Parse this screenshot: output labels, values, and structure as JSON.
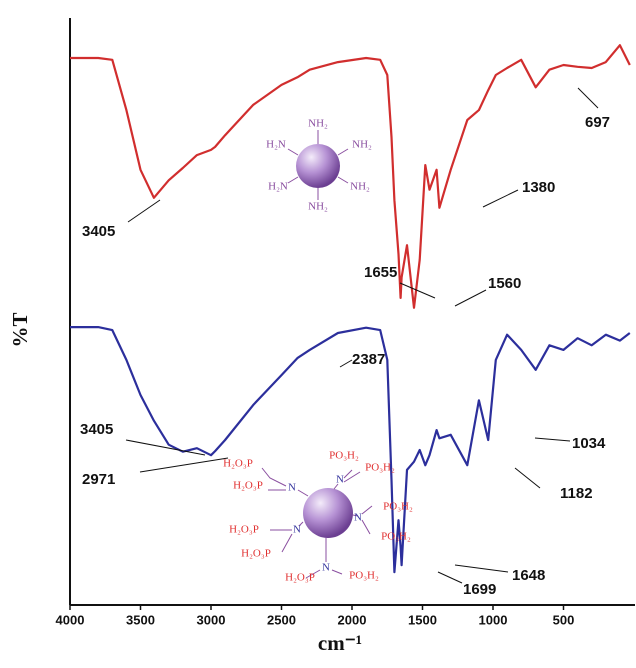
{
  "chart_data": {
    "type": "line",
    "xlabel": "cm⁻¹",
    "ylabel": "%T",
    "x": [
      4000,
      3800,
      3700,
      3600,
      3500,
      3405,
      3300,
      3200,
      3100,
      3000,
      2971,
      2900,
      2700,
      2500,
      2387,
      2300,
      2100,
      1900,
      1800,
      1750,
      1720,
      1699,
      1670,
      1655,
      1648,
      1610,
      1560,
      1520,
      1480,
      1450,
      1400,
      1380,
      1300,
      1182,
      1100,
      1034,
      980,
      900,
      800,
      697,
      600,
      500,
      400,
      300,
      200,
      100,
      30
    ],
    "series": [
      {
        "color": "#d12e2e",
        "values": [
          93.5,
          93.5,
          93.2,
          84.6,
          74.4,
          69.6,
          72.6,
          74.7,
          76.9,
          77.8,
          78.3,
          80.3,
          85.5,
          88.9,
          90.2,
          91.5,
          92.8,
          93.5,
          93.2,
          90.6,
          80.0,
          69.2,
          60.0,
          52.5,
          56.0,
          61.5,
          50.8,
          59.0,
          75.2,
          71.0,
          74.4,
          67.9,
          74.4,
          82.9,
          84.6,
          88.0,
          90.6,
          91.8,
          93.2,
          88.5,
          91.5,
          92.3,
          92.0,
          91.8,
          92.8,
          95.7,
          92.3
        ]
      },
      {
        "color": "#2c2f9c",
        "values": [
          47.5,
          47.5,
          47.0,
          41.9,
          35.9,
          31.5,
          27.4,
          26.2,
          26.8,
          25.6,
          26.3,
          28.2,
          34.2,
          39.3,
          42.2,
          43.6,
          46.5,
          47.4,
          47.0,
          41.9,
          21.4,
          5.6,
          14.5,
          10.0,
          6.8,
          23.1,
          24.5,
          26.5,
          23.9,
          25.6,
          29.9,
          28.5,
          29.1,
          23.9,
          35.0,
          28.2,
          41.9,
          46.2,
          43.6,
          40.2,
          44.4,
          43.6,
          45.6,
          44.4,
          46.2,
          45.2,
          46.5
        ]
      }
    ],
    "xlim": [
      4000,
      0
    ],
    "ylim": [
      0,
      100
    ],
    "xticks": [
      4000,
      3500,
      3000,
      2500,
      2000,
      1500,
      1000,
      500
    ],
    "annotations": [
      "3405",
      "1380",
      "1655",
      "1560",
      "697",
      "2387",
      "3405",
      "2971",
      "1182",
      "1034",
      "1699",
      "1648"
    ],
    "insets": [
      {
        "labels": [
          "NH₂",
          "H₂N",
          "NH₂",
          "H₂N",
          "NH₂",
          "NH₂"
        ]
      },
      {
        "labels": [
          "H₂O₃P",
          "H₂O₃P",
          "PO₃H₂",
          "PO₃H₂",
          "PO₃H₂",
          "PO₃H₂",
          "H₂O₃P",
          "H₂O₃P",
          "H₂O₃P",
          "PO₃H₂",
          "N",
          "N",
          "N",
          "N",
          "N"
        ]
      }
    ]
  }
}
